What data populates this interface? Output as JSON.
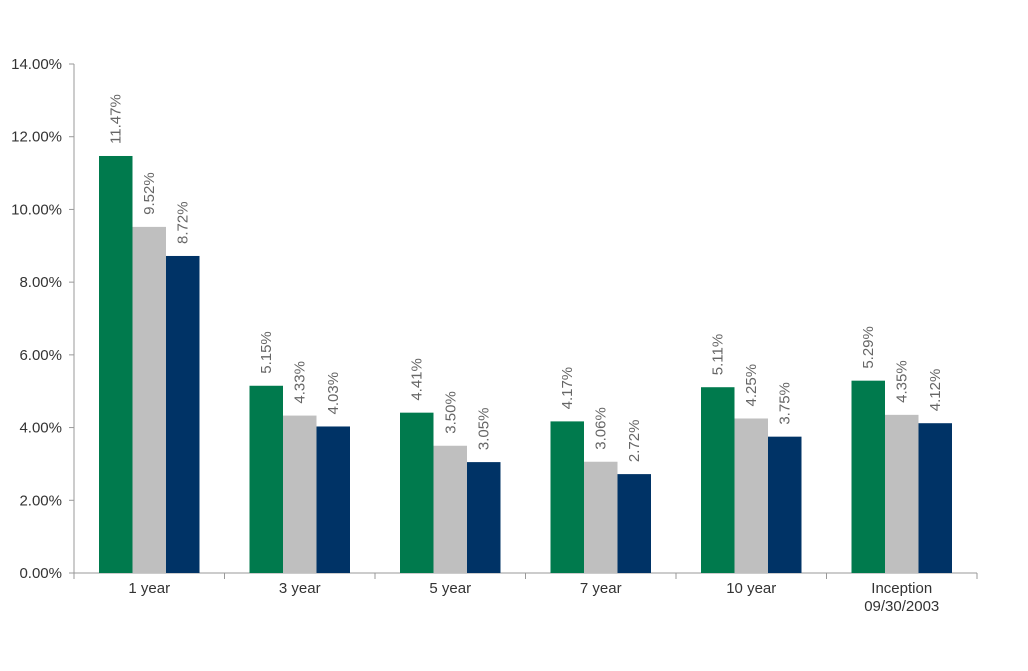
{
  "chart_data": {
    "type": "bar",
    "categories": [
      [
        "1 year"
      ],
      [
        "3 year"
      ],
      [
        "5 year"
      ],
      [
        "7 year"
      ],
      [
        "10 year"
      ],
      [
        "Inception",
        "09/30/2003"
      ]
    ],
    "series": [
      {
        "color": "#007A4D",
        "values": [
          11.47,
          5.15,
          4.41,
          4.17,
          5.11,
          5.29
        ],
        "labels": [
          "11.47%",
          "5.15%",
          "4.41%",
          "4.17%",
          "5.11%",
          "5.29%"
        ]
      },
      {
        "color": "#BFBFBF",
        "values": [
          9.52,
          4.33,
          3.5,
          3.06,
          4.25,
          4.35
        ],
        "labels": [
          "9.52%",
          "4.33%",
          "3.50%",
          "3.06%",
          "4.25%",
          "4.35%"
        ]
      },
      {
        "color": "#003366",
        "values": [
          8.72,
          4.03,
          3.05,
          2.72,
          3.75,
          4.12
        ],
        "labels": [
          "8.72%",
          "4.03%",
          "3.05%",
          "2.72%",
          "3.75%",
          "4.12%"
        ]
      }
    ],
    "yticks": [
      0,
      2,
      4,
      6,
      8,
      10,
      12,
      14
    ],
    "ytick_labels": [
      "0.00%",
      "2.00%",
      "4.00%",
      "6.00%",
      "8.00%",
      "10.00%",
      "12.00%",
      "14.00%"
    ],
    "ylim": [
      0,
      14
    ],
    "grid": false,
    "legend": "none",
    "title": "",
    "xlabel": "",
    "ylabel": ""
  }
}
